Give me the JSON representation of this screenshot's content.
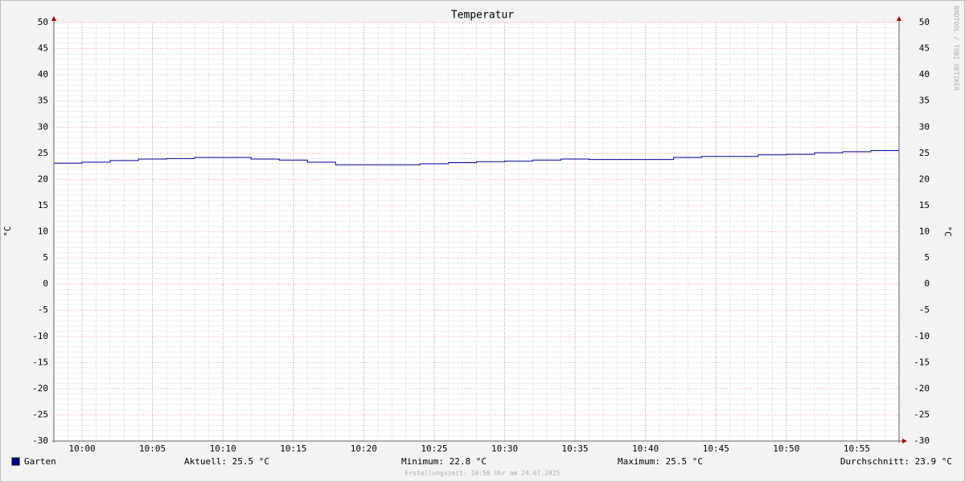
{
  "chart_data": {
    "type": "step",
    "title": "Temperatur",
    "y_label": "°C",
    "watermark": "RRDTOOL / TOBI OETIKER",
    "x": [
      "09:58",
      "10:00",
      "10:02",
      "10:04",
      "10:06",
      "10:08",
      "10:12",
      "10:14",
      "10:16",
      "10:18",
      "10:24",
      "10:26",
      "10:28",
      "10:30",
      "10:32",
      "10:34",
      "10:36",
      "10:42",
      "10:44",
      "10:48",
      "10:50",
      "10:52",
      "10:54",
      "10:56"
    ],
    "series": [
      {
        "name": "Garten",
        "color": "#00009c",
        "values": [
          23.1,
          23.3,
          23.6,
          23.9,
          24.0,
          24.2,
          23.9,
          23.7,
          23.3,
          22.8,
          23.0,
          23.2,
          23.4,
          23.5,
          23.7,
          23.9,
          23.8,
          24.2,
          24.4,
          24.7,
          24.8,
          25.1,
          25.3,
          25.5
        ]
      }
    ],
    "xlim": [
      "09:58",
      "10:58"
    ],
    "xticks": [
      "10:00",
      "10:05",
      "10:10",
      "10:15",
      "10:20",
      "10:25",
      "10:30",
      "10:35",
      "10:40",
      "10:45",
      "10:50",
      "10:55"
    ],
    "ylim": [
      -30,
      50
    ],
    "yticks": [
      -30,
      -25,
      -20,
      -15,
      -10,
      -5,
      0,
      5,
      10,
      15,
      20,
      25,
      30,
      35,
      40,
      45,
      50
    ],
    "grid": true,
    "minor_grid": true,
    "stats": [
      "Aktuell: 25.5 °C",
      "Minimum: 22.8 °C",
      "Maximum: 25.5 °C",
      "Durchschnitt: 23.9 °C"
    ],
    "footer": "Erstellungszeit: 10:58 Uhr am 24.07.2025"
  }
}
